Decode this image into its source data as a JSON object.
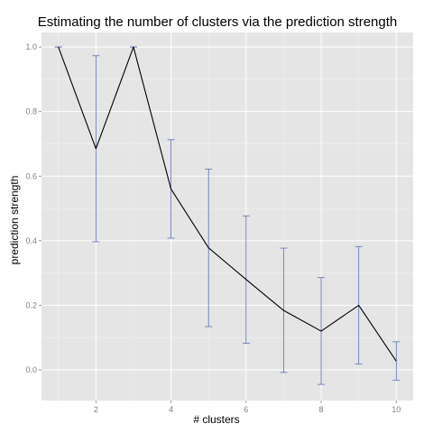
{
  "chart_data": {
    "type": "line",
    "title": "Estimating the number of clusters via the prediction strength",
    "xlabel": "# clusters",
    "ylabel": "prediction strength",
    "xlim": [
      0.55,
      10.45
    ],
    "ylim": [
      -0.095,
      1.045
    ],
    "x_ticks": [
      2,
      4,
      6,
      8,
      10
    ],
    "y_ticks": [
      0.0,
      0.2,
      0.4,
      0.6,
      0.8,
      1.0
    ],
    "y_tick_labels": [
      "0.0",
      "0.2",
      "0.4",
      "0.6",
      "0.8",
      "1.0"
    ],
    "grid": true,
    "x": [
      1,
      2,
      3,
      4,
      5,
      6,
      7,
      8,
      9,
      10
    ],
    "series": [
      {
        "values": [
          1.0,
          0.685,
          1.0,
          0.56,
          0.378,
          0.28,
          0.184,
          0.12,
          0.2,
          0.027
        ],
        "upper": [
          1.0,
          0.973,
          1.0,
          0.713,
          0.622,
          0.477,
          0.377,
          0.286,
          0.382,
          0.087
        ],
        "lower": [
          1.0,
          0.397,
          1.0,
          0.408,
          0.134,
          0.082,
          -0.008,
          -0.045,
          0.018,
          -0.032
        ]
      }
    ],
    "colors": {
      "panel_background": "#e5e5e5",
      "grid_major": "#ffffff",
      "grid_minor": "#f2f2f2",
      "line": "#000000",
      "error_bar": "#5b6fb3"
    }
  }
}
